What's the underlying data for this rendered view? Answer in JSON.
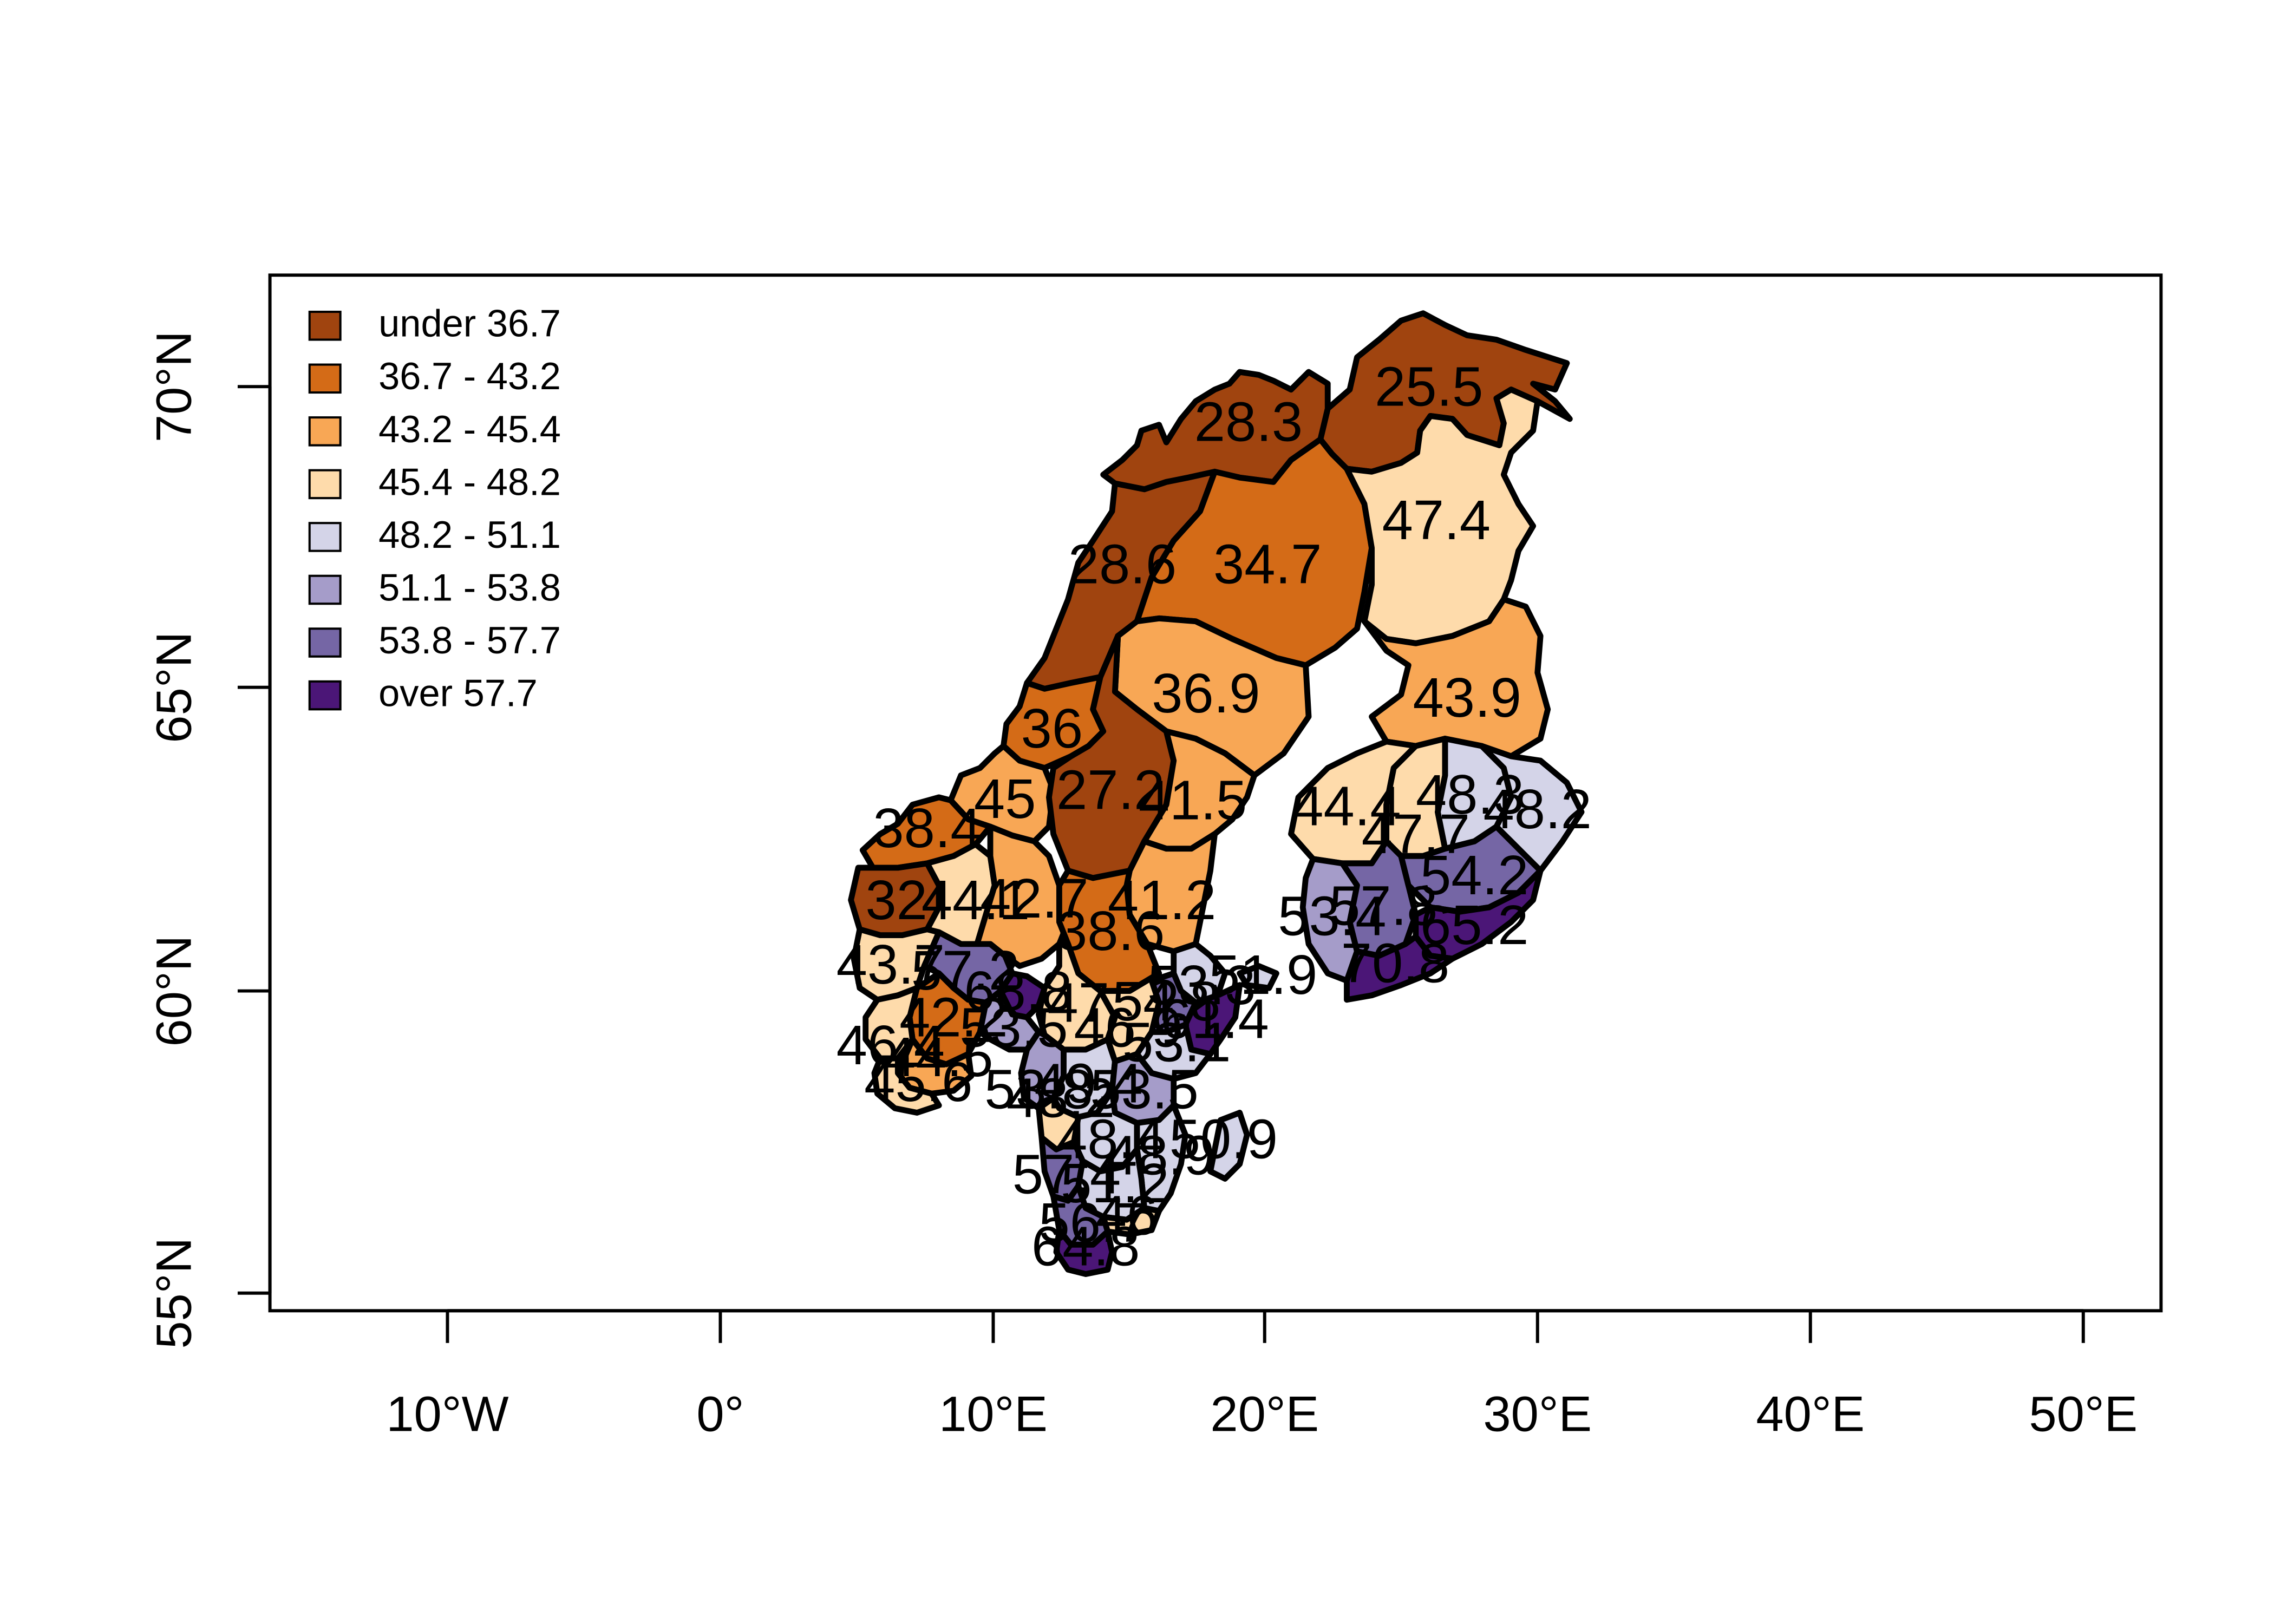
{
  "legend": {
    "items": [
      {
        "label": "under 36.7",
        "color": "#a0440f"
      },
      {
        "label": "36.7 - 43.2",
        "color": "#d46b17"
      },
      {
        "label": "43.2 - 45.4",
        "color": "#f8a755"
      },
      {
        "label": "45.4 - 48.2",
        "color": "#fedbab"
      },
      {
        "label": "48.2 - 51.1",
        "color": "#d4d4e8"
      },
      {
        "label": "51.1 - 53.8",
        "color": "#a59cc9"
      },
      {
        "label": "53.8 - 57.7",
        "color": "#7566a5"
      },
      {
        "label": "over 57.7",
        "color": "#4b1677"
      }
    ]
  },
  "axes": {
    "x_ticks": [
      "10°W",
      "0°",
      "10°E",
      "20°E",
      "30°E",
      "40°E",
      "50°E"
    ],
    "y_ticks": [
      "55°N",
      "60°N",
      "65°N",
      "70°N"
    ]
  },
  "chart_data": {
    "type": "choropleth",
    "xlim_degrees": [
      -16.5,
      52.8
    ],
    "ylim_degrees": [
      54.8,
      71.8
    ],
    "x_tick_values": [
      -10,
      0,
      10,
      20,
      30,
      40,
      50
    ],
    "y_tick_values": [
      55,
      60,
      65,
      70
    ],
    "bins": [
      {
        "label": "under 36.7",
        "color": "#a0440f"
      },
      {
        "label": "36.7 - 43.2",
        "color": "#d46b17"
      },
      {
        "label": "43.2 - 45.4",
        "color": "#f8a755"
      },
      {
        "label": "45.4 - 48.2",
        "color": "#fedbab"
      },
      {
        "label": "48.2 - 51.1",
        "color": "#d4d4e8"
      },
      {
        "label": "51.1 - 53.8",
        "color": "#a59cc9"
      },
      {
        "label": "53.8 - 57.7",
        "color": "#7566a5"
      },
      {
        "label": "over 57.7",
        "color": "#4b1677"
      }
    ],
    "region_values": [
      {
        "label": "25.5",
        "value": 25.5
      },
      {
        "label": "28.3",
        "value": 28.3
      },
      {
        "label": "47.4",
        "value": 47.4
      },
      {
        "label": "28.6",
        "value": 28.6
      },
      {
        "label": "34.7",
        "value": 34.7
      },
      {
        "label": "36.9",
        "value": 36.9
      },
      {
        "label": "43.9",
        "value": 43.9
      },
      {
        "label": "36",
        "value": 36
      },
      {
        "label": "27.2",
        "value": 27.2
      },
      {
        "label": "41.5",
        "value": 41.5
      },
      {
        "label": "45",
        "value": 45
      },
      {
        "label": "38.4",
        "value": 38.4
      },
      {
        "label": "44.4",
        "value": 44.4
      },
      {
        "label": "48.3",
        "value": 48.3
      },
      {
        "label": "48.2",
        "value": 48.2
      },
      {
        "label": "47.7",
        "value": 47.7
      },
      {
        "label": "32",
        "value": 32
      },
      {
        "label": "44.1",
        "value": 44.1
      },
      {
        "label": "42.7",
        "value": 42.7
      },
      {
        "label": "41.2",
        "value": 41.2
      },
      {
        "label": "54.2",
        "value": 54.2
      },
      {
        "label": "38.6",
        "value": 38.6
      },
      {
        "label": "53.4",
        "value": 53.4
      },
      {
        "label": "57.8",
        "value": 57.8
      },
      {
        "label": "65.2",
        "value": 65.2
      },
      {
        "label": "70.8",
        "value": 70.8
      },
      {
        "label": "43.7",
        "value": 43.7
      },
      {
        "label": "57.2",
        "value": 57.2
      },
      {
        "label": "68.8",
        "value": 68.8
      },
      {
        "label": "53.3",
        "value": 53.3
      },
      {
        "label": "51.9",
        "value": 51.9
      },
      {
        "label": "54.8",
        "value": 54.8
      },
      {
        "label": "47",
        "value": 47
      },
      {
        "label": "61.4",
        "value": 61.4
      },
      {
        "label": "42.2",
        "value": 42.2
      },
      {
        "label": "53.5",
        "value": 53.5
      },
      {
        "label": "46.9",
        "value": 46.9
      },
      {
        "label": "46.4",
        "value": 46.4
      },
      {
        "label": "44.5",
        "value": 44.5
      },
      {
        "label": "53.1",
        "value": 53.1
      },
      {
        "label": "45.6",
        "value": 45.6
      },
      {
        "label": "53.8",
        "value": 53.8
      },
      {
        "label": "49.4",
        "value": 49.4
      },
      {
        "label": "48.2",
        "value": 48.2
      },
      {
        "label": "53.5",
        "value": 53.5
      },
      {
        "label": "48.4",
        "value": 48.4
      },
      {
        "label": "50.9",
        "value": 50.9
      },
      {
        "label": "48.9",
        "value": 48.9
      },
      {
        "label": "57.4",
        "value": 57.4
      },
      {
        "label": "51.2",
        "value": 51.2
      },
      {
        "label": "56.7",
        "value": 56.7
      },
      {
        "label": "46",
        "value": 46
      },
      {
        "label": "64.8",
        "value": 64.8
      }
    ]
  }
}
